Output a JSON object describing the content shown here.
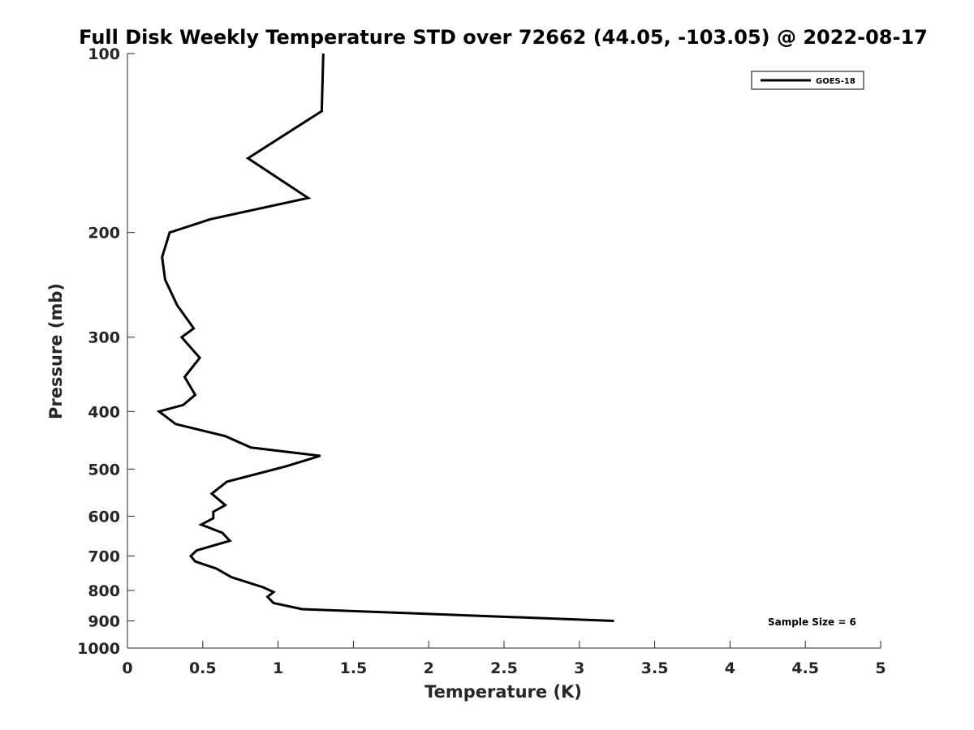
{
  "chart_data": {
    "type": "line",
    "title": "Full Disk Weekly Temperature STD over 72662 (44.05, -103.05) @ 2022-08-17",
    "xlabel": "Temperature (K)",
    "ylabel": "Pressure (mb)",
    "xlim": [
      0,
      5
    ],
    "ylim": [
      100,
      1000
    ],
    "y_scale": "log",
    "y_reversed": true,
    "grid": false,
    "legend_position": "top-right",
    "x_ticks": [
      "0",
      "0.5",
      "1",
      "1.5",
      "2",
      "2.5",
      "3",
      "3.5",
      "4",
      "4.5",
      "5"
    ],
    "y_ticks": [
      "100",
      "200",
      "300",
      "400",
      "500",
      "600",
      "700",
      "800",
      "900",
      "1000"
    ],
    "series": [
      {
        "name": "GOES-18",
        "color": "#000000",
        "points": [
          [
            1.3,
            100
          ],
          [
            1.29,
            125
          ],
          [
            0.8,
            150
          ],
          [
            1.2,
            175
          ],
          [
            0.55,
            190
          ],
          [
            0.28,
            200
          ],
          [
            0.23,
            220
          ],
          [
            0.25,
            240
          ],
          [
            0.33,
            265
          ],
          [
            0.44,
            290
          ],
          [
            0.36,
            300
          ],
          [
            0.48,
            325
          ],
          [
            0.38,
            350
          ],
          [
            0.45,
            375
          ],
          [
            0.37,
            390
          ],
          [
            0.21,
            400
          ],
          [
            0.32,
            420
          ],
          [
            0.65,
            440
          ],
          [
            0.82,
            460
          ],
          [
            1.28,
            475
          ],
          [
            1.05,
            495
          ],
          [
            0.66,
            525
          ],
          [
            0.56,
            550
          ],
          [
            0.65,
            575
          ],
          [
            0.57,
            590
          ],
          [
            0.57,
            605
          ],
          [
            0.49,
            620
          ],
          [
            0.63,
            640
          ],
          [
            0.68,
            660
          ],
          [
            0.46,
            685
          ],
          [
            0.42,
            700
          ],
          [
            0.45,
            715
          ],
          [
            0.59,
            735
          ],
          [
            0.69,
            760
          ],
          [
            0.9,
            790
          ],
          [
            0.97,
            805
          ],
          [
            0.93,
            820
          ],
          [
            0.97,
            840
          ],
          [
            1.16,
            860
          ],
          [
            3.23,
            900
          ]
        ]
      }
    ],
    "annotation": "Sample Size = 6"
  }
}
